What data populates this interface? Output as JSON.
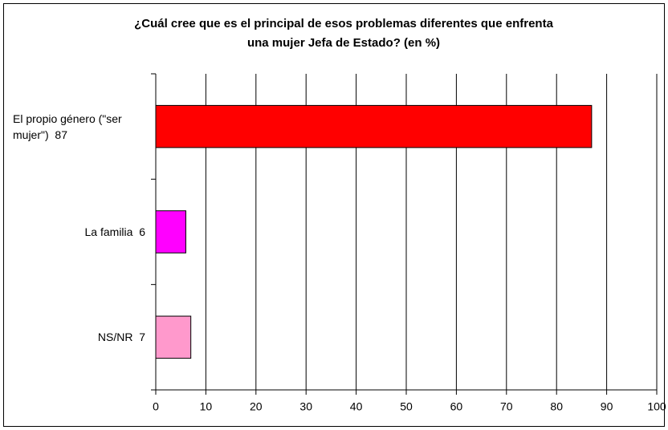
{
  "chart_data": {
    "type": "hbar",
    "title": "¿Cuál cree que es el principal de esos problemas diferentes que enfrenta una mujer Jefa de Estado? (en %)",
    "title_lines": [
      "¿Cuál cree que es el principal de esos problemas diferentes que enfrenta",
      "una mujer Jefa de Estado? (en %)"
    ],
    "categories": [
      "El propio género (\"ser mujer\")  87",
      "La familia  6",
      "NS/NR  7"
    ],
    "values": [
      87,
      6,
      7
    ],
    "colors": [
      "#ff0000",
      "#ff00ff",
      "#ff99cc"
    ],
    "xlim": [
      0,
      100
    ],
    "xticks": [
      0,
      10,
      20,
      30,
      40,
      50,
      60,
      70,
      80,
      90,
      100
    ],
    "grid": true
  }
}
